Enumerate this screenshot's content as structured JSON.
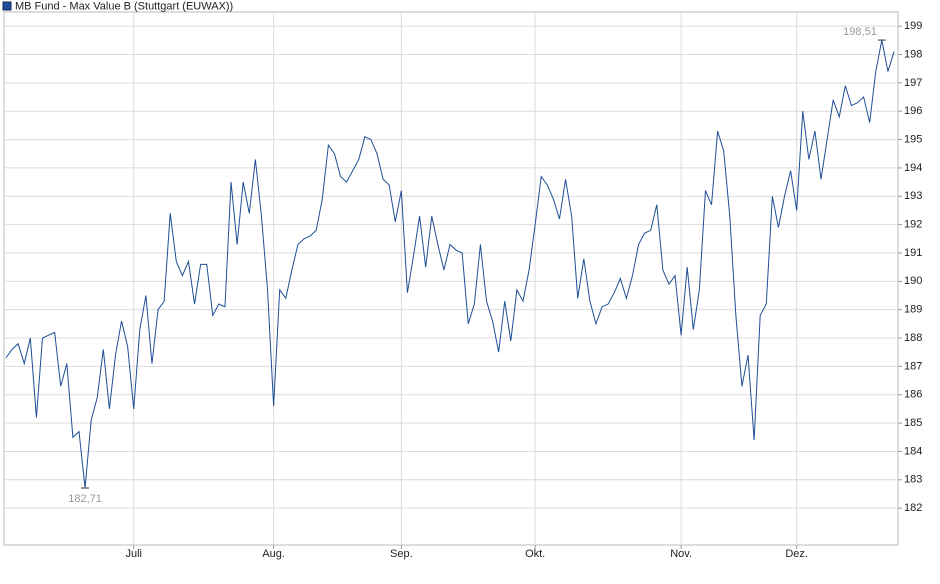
{
  "chart_data": {
    "type": "line",
    "title": "MB Fund - Max Value B (Stuttgart (EUWAX))",
    "color": "#1f4e96",
    "grid": true,
    "ylim": [
      180.7,
      199.5
    ],
    "yticks": [
      182,
      183,
      184,
      185,
      186,
      187,
      188,
      189,
      190,
      191,
      192,
      193,
      194,
      195,
      196,
      197,
      198,
      199
    ],
    "categories": [
      null,
      null,
      null,
      null,
      null,
      null,
      null,
      null,
      null,
      null,
      null,
      null,
      null,
      null,
      null,
      null,
      null,
      null,
      null,
      null,
      null,
      "Juli",
      null,
      null,
      null,
      null,
      null,
      null,
      null,
      null,
      null,
      null,
      null,
      null,
      null,
      null,
      null,
      null,
      null,
      null,
      null,
      null,
      null,
      null,
      "Aug.",
      null,
      null,
      null,
      null,
      null,
      null,
      null,
      null,
      null,
      null,
      null,
      null,
      null,
      null,
      null,
      null,
      null,
      null,
      null,
      null,
      "Sep.",
      null,
      null,
      null,
      null,
      null,
      null,
      null,
      null,
      null,
      null,
      null,
      null,
      null,
      null,
      null,
      null,
      null,
      null,
      null,
      null,
      null,
      "Okt.",
      null,
      null,
      null,
      null,
      null,
      null,
      null,
      null,
      null,
      null,
      null,
      null,
      null,
      null,
      null,
      null,
      null,
      null,
      null,
      null,
      null,
      null,
      null,
      "Nov.",
      null,
      null,
      null,
      null,
      null,
      null,
      null,
      null,
      null,
      null,
      null,
      null,
      null,
      null,
      null,
      null,
      null,
      null,
      "Dez.",
      null,
      null,
      null,
      null,
      null,
      null,
      null,
      null,
      null,
      null,
      null,
      null,
      null,
      null,
      null,
      null
    ],
    "values": [
      187.3,
      187.6,
      187.8,
      187.1,
      188.0,
      185.2,
      188.0,
      188.1,
      188.2,
      186.3,
      187.1,
      184.5,
      184.7,
      182.71,
      185.1,
      185.9,
      187.6,
      185.5,
      187.4,
      188.6,
      187.7,
      185.5,
      188.3,
      189.5,
      187.1,
      189.0,
      189.3,
      192.4,
      190.7,
      190.2,
      190.7,
      189.2,
      190.6,
      190.6,
      188.8,
      189.2,
      189.1,
      193.5,
      191.3,
      193.5,
      192.4,
      194.3,
      192.3,
      189.7,
      185.6,
      189.7,
      189.4,
      190.4,
      191.3,
      191.5,
      191.6,
      191.8,
      192.9,
      194.8,
      194.5,
      193.7,
      193.5,
      193.9,
      194.3,
      195.1,
      195.0,
      194.5,
      193.6,
      193.4,
      192.1,
      193.2,
      189.6,
      190.9,
      192.3,
      190.5,
      192.3,
      191.3,
      190.4,
      191.3,
      191.1,
      191.0,
      188.5,
      189.2,
      191.3,
      189.3,
      188.6,
      187.5,
      189.3,
      187.9,
      189.7,
      189.3,
      190.4,
      192.0,
      193.7,
      193.4,
      192.9,
      192.2,
      193.6,
      192.3,
      189.4,
      190.8,
      189.3,
      188.5,
      189.1,
      189.2,
      189.6,
      190.1,
      189.4,
      190.2,
      191.3,
      191.7,
      191.8,
      192.7,
      190.4,
      189.9,
      190.2,
      188.1,
      190.5,
      188.3,
      189.7,
      193.2,
      192.7,
      195.3,
      194.6,
      192.3,
      188.8,
      186.3,
      187.4,
      184.4,
      188.8,
      189.2,
      193.0,
      191.9,
      193.0,
      193.9,
      192.5,
      196.0,
      194.3,
      195.3,
      193.6,
      195.0,
      196.4,
      195.8,
      196.9,
      196.2,
      196.3,
      196.5,
      195.6,
      197.4,
      198.51,
      197.4,
      198.1
    ],
    "value_labels": [
      null,
      null,
      null,
      null,
      null,
      null,
      null,
      null,
      null,
      null,
      null,
      null,
      null,
      "182,71",
      null,
      null,
      null,
      null,
      null,
      null,
      null,
      null,
      null,
      null,
      null,
      null,
      null,
      null,
      null,
      null,
      null,
      null,
      null,
      null,
      null,
      null,
      null,
      null,
      null,
      null,
      null,
      null,
      null,
      null,
      null,
      null,
      null,
      null,
      null,
      null,
      null,
      null,
      null,
      null,
      null,
      null,
      null,
      null,
      null,
      null,
      null,
      null,
      null,
      null,
      null,
      null,
      null,
      null,
      null,
      null,
      null,
      null,
      null,
      null,
      null,
      null,
      null,
      null,
      null,
      null,
      null,
      null,
      null,
      null,
      null,
      null,
      null,
      null,
      null,
      null,
      null,
      null,
      null,
      null,
      null,
      null,
      null,
      null,
      null,
      null,
      null,
      null,
      null,
      null,
      null,
      null,
      null,
      null,
      null,
      null,
      null,
      null,
      null,
      null,
      null,
      null,
      null,
      null,
      null,
      null,
      null,
      null,
      null,
      null,
      null,
      null,
      null,
      null,
      null,
      null,
      null,
      null,
      null,
      null,
      null,
      null,
      null,
      null,
      null,
      null,
      null,
      null,
      null,
      null,
      "198,51",
      null,
      null
    ]
  }
}
